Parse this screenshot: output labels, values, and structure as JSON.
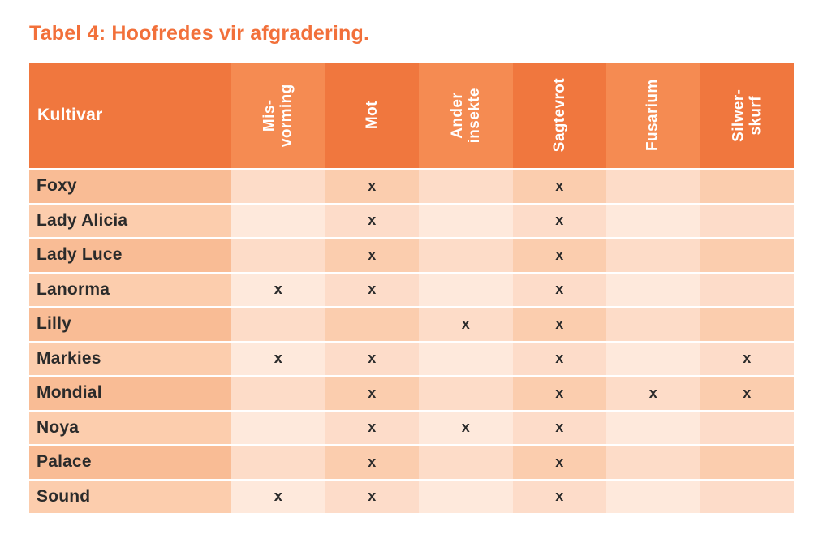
{
  "title": "Tabel 4: Hoofredes vir afgradering.",
  "colors": {
    "title": "#f2703a",
    "header-dark": "#f0773e",
    "header-light": "#f58b52",
    "header-text": "#ffffff",
    "row-dark-kultivar": "#f9bc95",
    "row-dark-col-dark": "#fbcdae",
    "row-dark-col-light": "#fddcc8",
    "row-light-kultivar": "#fccdad",
    "row-light-col-dark": "#fddcc9",
    "row-light-col-light": "#fee9dc",
    "text": "#2b2b2b"
  },
  "table": {
    "header": {
      "kultivar_label": "Kultivar",
      "columns": [
        {
          "label": "Mis-\nvorming",
          "tone": "light"
        },
        {
          "label": "Mot",
          "tone": "dark"
        },
        {
          "label": "Ander\ninsekte",
          "tone": "light"
        },
        {
          "label": "Sagtevrot",
          "tone": "dark"
        },
        {
          "label": "Fusarium",
          "tone": "light"
        },
        {
          "label": "Silwer-\nskurf",
          "tone": "dark"
        }
      ]
    },
    "mark_symbol": "x",
    "rows": [
      {
        "name": "Foxy",
        "marks": [
          "",
          "x",
          "",
          "x",
          "",
          ""
        ]
      },
      {
        "name": "Lady Alicia",
        "marks": [
          "",
          "x",
          "",
          "x",
          "",
          ""
        ]
      },
      {
        "name": "Lady Luce",
        "marks": [
          "",
          "x",
          "",
          "x",
          "",
          ""
        ]
      },
      {
        "name": "Lanorma",
        "marks": [
          "x",
          "x",
          "",
          "x",
          "",
          ""
        ]
      },
      {
        "name": "Lilly",
        "marks": [
          "",
          "",
          "x",
          "x",
          "",
          ""
        ]
      },
      {
        "name": "Markies",
        "marks": [
          "x",
          "x",
          "",
          "x",
          "",
          "x"
        ]
      },
      {
        "name": "Mondial",
        "marks": [
          "",
          "x",
          "",
          "x",
          "x",
          "x"
        ]
      },
      {
        "name": "Noya",
        "marks": [
          "",
          "x",
          "x",
          "x",
          "",
          ""
        ]
      },
      {
        "name": "Palace",
        "marks": [
          "",
          "x",
          "",
          "x",
          "",
          ""
        ]
      },
      {
        "name": "Sound",
        "marks": [
          "x",
          "x",
          "",
          "x",
          "",
          ""
        ]
      }
    ]
  }
}
